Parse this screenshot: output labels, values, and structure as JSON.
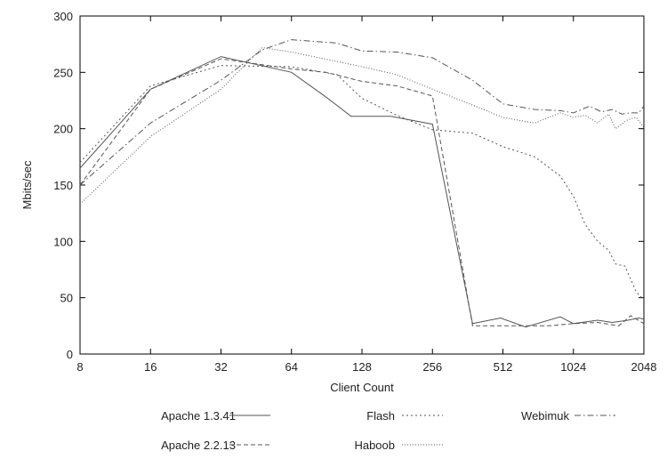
{
  "chart_data": {
    "type": "line",
    "title": "",
    "xlabel": "Client Count",
    "ylabel": "Mbits/sec",
    "xscale": "log2",
    "xlim": [
      8,
      2048
    ],
    "ylim": [
      0,
      300
    ],
    "x_ticks": [
      "8",
      "16",
      "32",
      "64",
      "128",
      "256",
      "512",
      "1024",
      "2048"
    ],
    "y_ticks": [
      "0",
      "50",
      "100",
      "150",
      "200",
      "250",
      "300"
    ],
    "grid": false,
    "legend_position": "bottom",
    "series": [
      {
        "name": "Apache 1.3.41",
        "style": "solid",
        "color": "#555555",
        "points": [
          [
            8,
            165
          ],
          [
            16,
            235
          ],
          [
            32,
            264
          ],
          [
            64,
            250
          ],
          [
            90,
            228
          ],
          [
            115,
            211
          ],
          [
            170,
            211
          ],
          [
            256,
            204
          ],
          [
            380,
            27
          ],
          [
            500,
            32
          ],
          [
            640,
            24
          ],
          [
            900,
            33
          ],
          [
            1024,
            27
          ],
          [
            1300,
            30
          ],
          [
            1500,
            28
          ],
          [
            1750,
            30
          ],
          [
            1950,
            32
          ],
          [
            2048,
            31
          ]
        ]
      },
      {
        "name": "Apache 2.2.13",
        "style": "dashed",
        "color": "#555555",
        "points": [
          [
            8,
            150
          ],
          [
            16,
            235
          ],
          [
            32,
            262
          ],
          [
            64,
            253
          ],
          [
            90,
            250
          ],
          [
            128,
            242
          ],
          [
            180,
            238
          ],
          [
            256,
            229
          ],
          [
            380,
            25
          ],
          [
            500,
            25
          ],
          [
            640,
            25
          ],
          [
            800,
            25
          ],
          [
            1024,
            27
          ],
          [
            1300,
            28
          ],
          [
            1600,
            25
          ],
          [
            1800,
            34
          ],
          [
            2048,
            27
          ]
        ]
      },
      {
        "name": "Flash",
        "style": "dotted",
        "color": "#555555",
        "points": [
          [
            8,
            170
          ],
          [
            16,
            238
          ],
          [
            32,
            256
          ],
          [
            64,
            255
          ],
          [
            100,
            248
          ],
          [
            128,
            227
          ],
          [
            180,
            212
          ],
          [
            256,
            199
          ],
          [
            380,
            196
          ],
          [
            512,
            184
          ],
          [
            700,
            175
          ],
          [
            900,
            158
          ],
          [
            1024,
            140
          ],
          [
            1150,
            115
          ],
          [
            1300,
            100
          ],
          [
            1450,
            92
          ],
          [
            1550,
            80
          ],
          [
            1700,
            78
          ],
          [
            1900,
            55
          ],
          [
            2048,
            48
          ]
        ]
      },
      {
        "name": "Haboob",
        "style": "dotted-fine",
        "color": "#555555",
        "points": [
          [
            8,
            133
          ],
          [
            16,
            193
          ],
          [
            32,
            235
          ],
          [
            48,
            272
          ],
          [
            64,
            268
          ],
          [
            128,
            255
          ],
          [
            180,
            248
          ],
          [
            256,
            235
          ],
          [
            380,
            221
          ],
          [
            512,
            210
          ],
          [
            700,
            205
          ],
          [
            900,
            214
          ],
          [
            1024,
            210
          ],
          [
            1150,
            212
          ],
          [
            1300,
            205
          ],
          [
            1450,
            213
          ],
          [
            1550,
            200
          ],
          [
            1750,
            208
          ],
          [
            1900,
            210
          ],
          [
            2048,
            201
          ]
        ]
      },
      {
        "name": "Webimuk",
        "style": "dash-dot",
        "color": "#555555",
        "points": [
          [
            8,
            150
          ],
          [
            16,
            205
          ],
          [
            32,
            243
          ],
          [
            48,
            270
          ],
          [
            64,
            279
          ],
          [
            100,
            276
          ],
          [
            128,
            269
          ],
          [
            180,
            268
          ],
          [
            256,
            263
          ],
          [
            380,
            243
          ],
          [
            512,
            222
          ],
          [
            700,
            217
          ],
          [
            900,
            216
          ],
          [
            1024,
            214
          ],
          [
            1200,
            220
          ],
          [
            1350,
            215
          ],
          [
            1500,
            217
          ],
          [
            1650,
            213
          ],
          [
            1800,
            214
          ],
          [
            1950,
            214
          ],
          [
            2048,
            220
          ]
        ]
      }
    ]
  }
}
